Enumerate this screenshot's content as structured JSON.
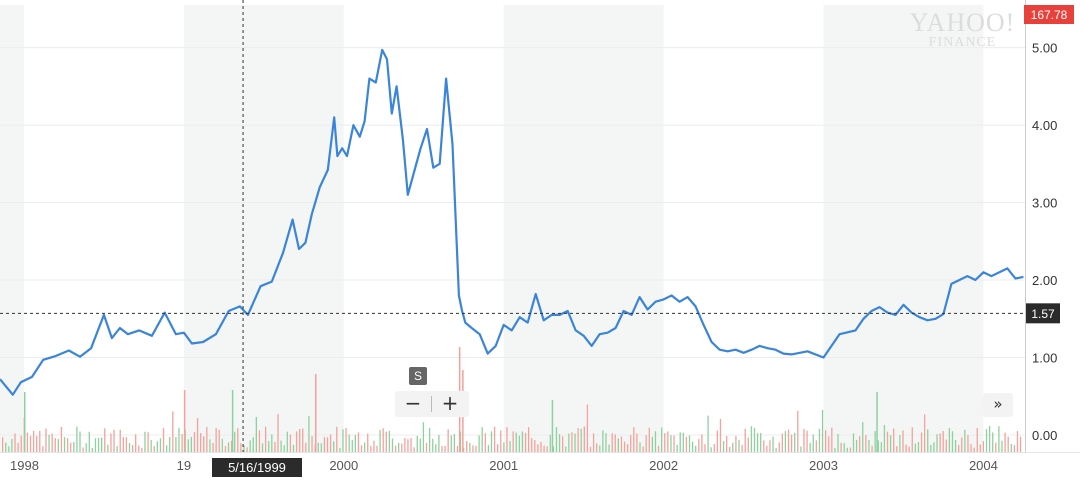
{
  "watermark": {
    "line1": "YAHOO!",
    "line2": "FINANCE"
  },
  "current_price_badge": "167.78",
  "crosshair": {
    "date_label": "5/16/1999",
    "value_label": "1.57"
  },
  "split_marker_label": "S",
  "controls": {
    "zoom_out": "−",
    "zoom_in": "+",
    "expand": "»"
  },
  "colors": {
    "line": "#3b85d8",
    "volume_up": "#8fd19e",
    "volume_down": "#f3a29c",
    "badge_red": "#e8413b",
    "band": "#f4f6f5"
  },
  "chart_data": {
    "type": "line",
    "x_tick_labels": [
      "1998",
      "19",
      "2000",
      "2001",
      "2002",
      "2003",
      "2004"
    ],
    "x_tick_years": [
      1998.0,
      1999.0,
      2000.0,
      2001.0,
      2002.0,
      2003.0,
      2004.0
    ],
    "y_tick_labels": [
      "0.00",
      "1.00",
      "2.00",
      "3.00",
      "4.00",
      "5.00"
    ],
    "y_ticks": [
      0,
      1,
      2,
      3,
      4,
      5
    ],
    "xlim": [
      1997.85,
      2004.26
    ],
    "ylim": [
      -0.22,
      5.55
    ],
    "grid": true,
    "series": [
      {
        "x": [
          1997.85,
          1997.93,
          1997.98,
          1998.05,
          1998.12,
          1998.2,
          1998.28,
          1998.35,
          1998.42,
          1998.5,
          1998.55,
          1998.6,
          1998.65,
          1998.72,
          1998.8,
          1998.88,
          1998.95,
          1999.0,
          1999.05,
          1999.12,
          1999.2,
          1999.28,
          1999.35,
          1999.4,
          1999.48,
          1999.55,
          1999.62,
          1999.68,
          1999.72,
          1999.76,
          1999.8,
          1999.85,
          1999.9,
          1999.94,
          1999.96,
          1999.99,
          2000.02,
          2000.06,
          2000.1,
          2000.13,
          2000.16,
          2000.2,
          2000.24,
          2000.27,
          2000.3,
          2000.33,
          2000.37,
          2000.4,
          2000.44,
          2000.48,
          2000.52,
          2000.56,
          2000.6,
          2000.64,
          2000.68,
          2000.72,
          2000.74,
          2000.76,
          2000.8,
          2000.85,
          2000.9,
          2000.95,
          2001.0,
          2001.05,
          2001.1,
          2001.15,
          2001.2,
          2001.25,
          2001.3,
          2001.35,
          2001.4,
          2001.45,
          2001.5,
          2001.55,
          2001.6,
          2001.65,
          2001.7,
          2001.75,
          2001.8,
          2001.85,
          2001.9,
          2001.95,
          2002.0,
          2002.05,
          2002.1,
          2002.15,
          2002.2,
          2002.25,
          2002.3,
          2002.35,
          2002.4,
          2002.45,
          2002.5,
          2002.55,
          2002.6,
          2002.65,
          2002.7,
          2002.75,
          2002.8,
          2002.9,
          2003.0,
          2003.1,
          2003.2,
          2003.25,
          2003.3,
          2003.35,
          2003.4,
          2003.45,
          2003.5,
          2003.55,
          2003.6,
          2003.65,
          2003.7,
          2003.75,
          2003.8,
          2003.85,
          2003.9,
          2003.95,
          2004.0,
          2004.05,
          2004.1,
          2004.15,
          2004.2,
          2004.25
        ],
        "values": [
          0.72,
          0.52,
          0.68,
          0.75,
          0.97,
          1.02,
          1.09,
          1.01,
          1.12,
          1.55,
          1.25,
          1.38,
          1.3,
          1.35,
          1.28,
          1.58,
          1.3,
          1.32,
          1.18,
          1.2,
          1.3,
          1.6,
          1.66,
          1.55,
          1.92,
          1.98,
          2.35,
          2.78,
          2.4,
          2.48,
          2.85,
          3.2,
          3.42,
          4.1,
          3.6,
          3.7,
          3.6,
          4.0,
          3.85,
          4.05,
          4.6,
          4.55,
          4.97,
          4.85,
          4.15,
          4.5,
          3.8,
          3.1,
          3.4,
          3.7,
          3.95,
          3.45,
          3.5,
          4.6,
          3.75,
          1.8,
          1.6,
          1.45,
          1.38,
          1.3,
          1.05,
          1.15,
          1.42,
          1.35,
          1.52,
          1.45,
          1.82,
          1.48,
          1.55,
          1.55,
          1.6,
          1.35,
          1.28,
          1.15,
          1.3,
          1.32,
          1.38,
          1.6,
          1.55,
          1.78,
          1.62,
          1.72,
          1.75,
          1.8,
          1.72,
          1.78,
          1.66,
          1.42,
          1.2,
          1.1,
          1.08,
          1.1,
          1.06,
          1.1,
          1.15,
          1.12,
          1.1,
          1.05,
          1.04,
          1.08,
          1.0,
          1.3,
          1.35,
          1.5,
          1.6,
          1.65,
          1.58,
          1.55,
          1.68,
          1.58,
          1.52,
          1.48,
          1.5,
          1.56,
          1.95,
          2.0,
          2.05,
          2.0,
          2.1,
          2.05,
          2.1,
          2.15,
          2.02,
          2.04
        ]
      }
    ],
    "volume_series": {
      "seed": 7,
      "bars": 330
    }
  }
}
